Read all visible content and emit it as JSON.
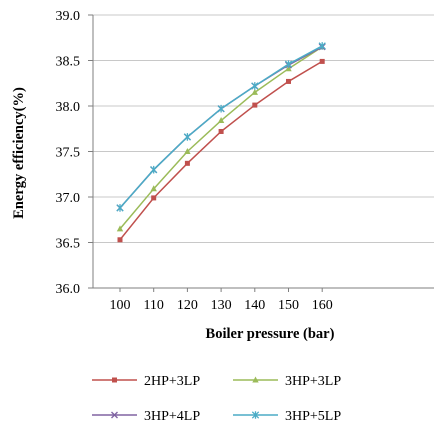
{
  "chart_data": {
    "type": "line",
    "title": "",
    "xlabel": "Boiler pressure (bar)",
    "ylabel": "Energy efficiency(%)",
    "x": [
      100,
      110,
      120,
      130,
      140,
      150,
      160
    ],
    "ylim": [
      36.0,
      39.0
    ],
    "yticks": [
      "36.0",
      "36.5",
      "37.0",
      "37.5",
      "38.0",
      "38.5",
      "39.0"
    ],
    "grid": "horizontal",
    "legend_position": "bottom",
    "series": [
      {
        "name": "2HP+3LP",
        "color": "#c0504d",
        "marker": "square",
        "values": [
          36.53,
          36.99,
          37.37,
          37.72,
          38.01,
          38.27,
          38.49
        ]
      },
      {
        "name": "3HP+3LP",
        "color": "#9bbb59",
        "marker": "triangle",
        "values": [
          36.65,
          37.09,
          37.5,
          37.84,
          38.15,
          38.41,
          38.65
        ]
      },
      {
        "name": "3HP+4LP",
        "color": "#8064a2",
        "marker": "x",
        "values": [
          36.88,
          37.3,
          37.66,
          37.97,
          38.22,
          38.45,
          38.65
        ]
      },
      {
        "name": "3HP+5LP",
        "color": "#4bacc6",
        "marker": "star",
        "values": [
          36.88,
          37.3,
          37.66,
          37.97,
          38.22,
          38.46,
          38.66
        ]
      }
    ]
  }
}
